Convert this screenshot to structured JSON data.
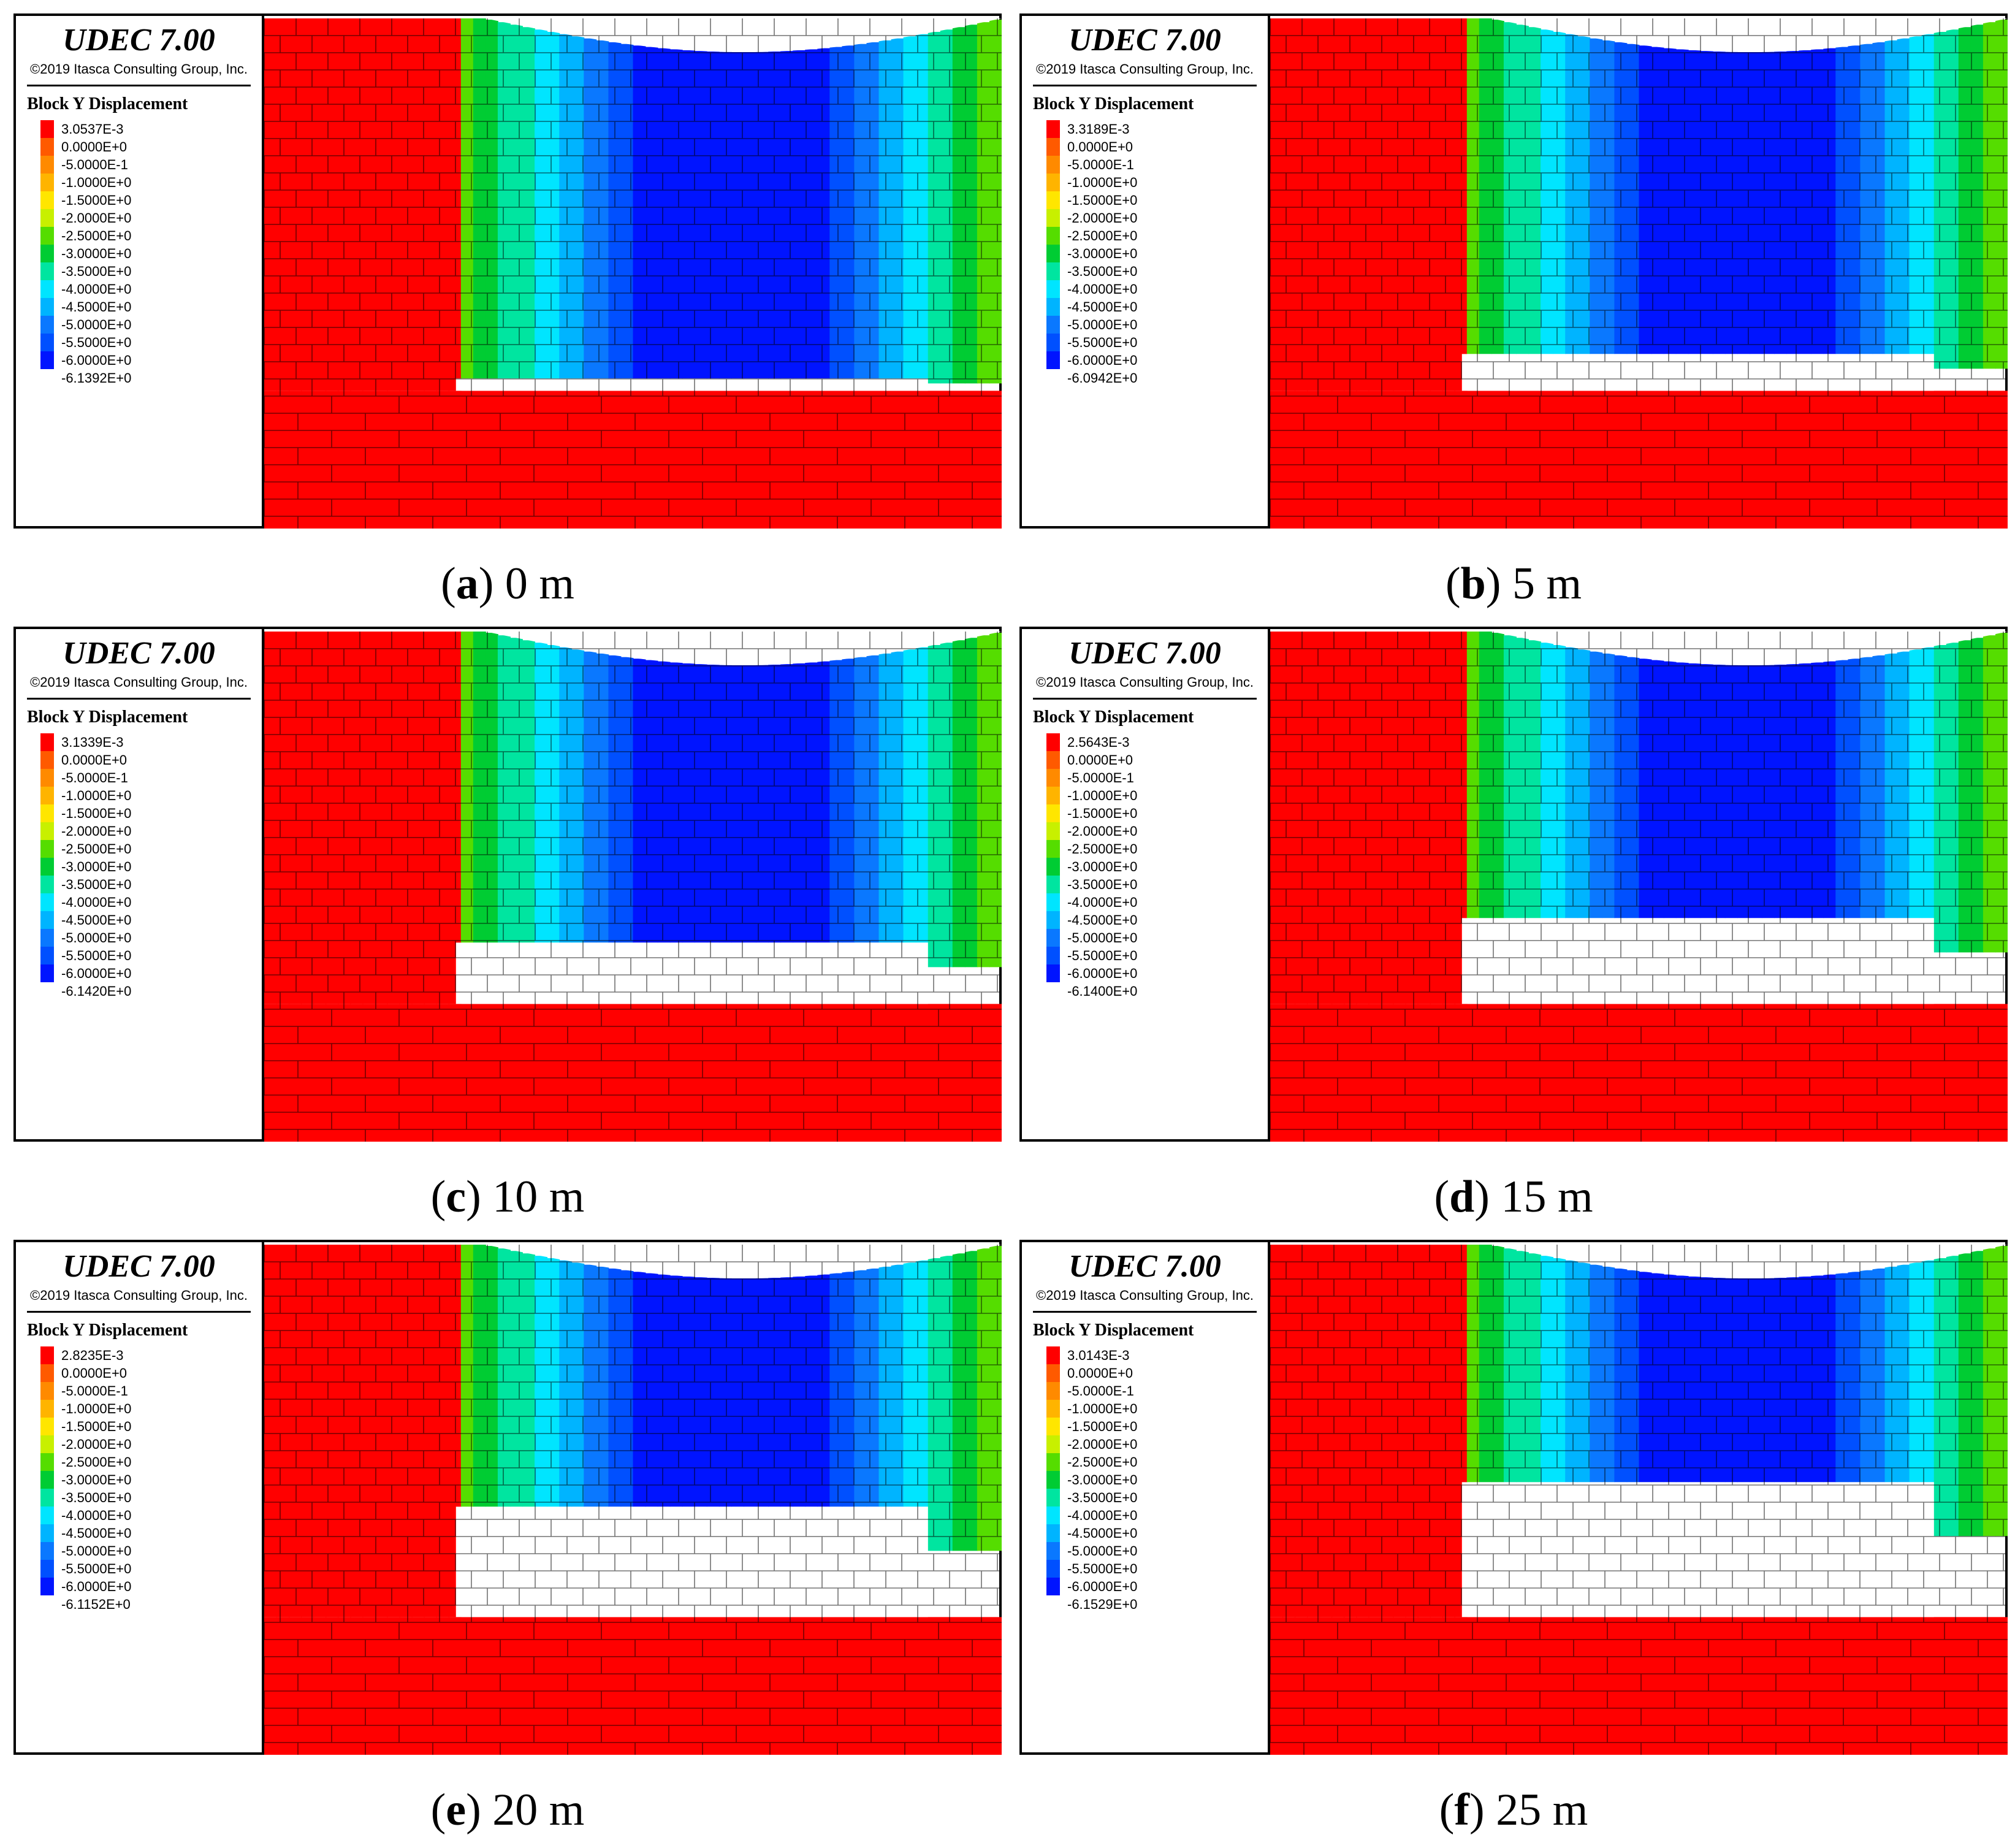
{
  "panels": [
    {
      "id": "a",
      "letter": "a",
      "label": "0 m",
      "max_value": "3.0537E-3",
      "min_value": "-6.1392E+0"
    },
    {
      "id": "b",
      "letter": "b",
      "label": "5 m",
      "max_value": "3.3189E-3",
      "min_value": "-6.0942E+0"
    },
    {
      "id": "c",
      "letter": "c",
      "label": "10 m",
      "max_value": "3.1339E-3",
      "min_value": "-6.1420E+0"
    },
    {
      "id": "d",
      "letter": "d",
      "label": "15 m",
      "max_value": "2.5643E-3",
      "min_value": "-6.1400E+0"
    },
    {
      "id": "e",
      "letter": "e",
      "label": "20 m",
      "max_value": "2.8235E-3",
      "min_value": "-6.1152E+0"
    },
    {
      "id": "f",
      "letter": "f",
      "label": "25 m",
      "max_value": "3.0143E-3",
      "min_value": "-6.1529E+0"
    }
  ],
  "common": {
    "software": "UDEC 7.00",
    "copyright": "©2019 Itasca Consulting Group, Inc.",
    "legend_title": "Block Y Displacement",
    "contour_levels": [
      "0.0000E+0",
      "-5.0000E-1",
      "-1.0000E+0",
      "-1.5000E+0",
      "-2.0000E+0",
      "-2.5000E+0",
      "-3.0000E+0",
      "-3.5000E+0",
      "-4.0000E+0",
      "-4.5000E+0",
      "-5.0000E+0",
      "-5.5000E+0",
      "-6.0000E+0"
    ],
    "colors": [
      "#ff0000",
      "#ff5a00",
      "#ff8a00",
      "#ffb400",
      "#ffe600",
      "#c8f000",
      "#55dd00",
      "#00cc33",
      "#00e5a0",
      "#00e5ff",
      "#00b4ff",
      "#0a78ff",
      "#0050ff",
      "#0014ff"
    ]
  }
}
